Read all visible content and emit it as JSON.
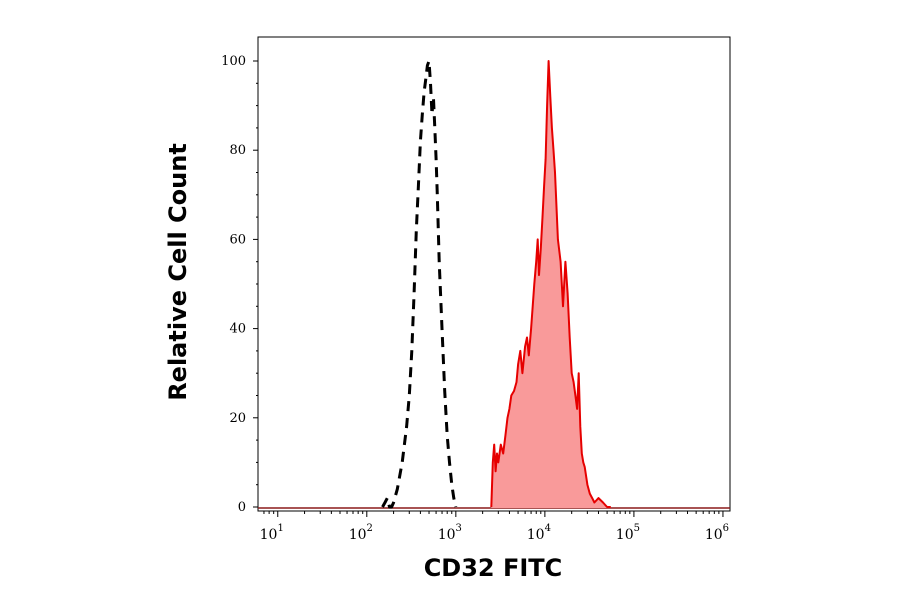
{
  "chart_data": {
    "type": "area",
    "xlabel": "CD32 FITC",
    "ylabel": "Relative Cell Count",
    "x_scale": "log",
    "xlim": [
      6,
      1200000
    ],
    "ylim": [
      0,
      100
    ],
    "x_ticks": [
      {
        "value": 10,
        "base": "10",
        "exp": "1"
      },
      {
        "value": 100,
        "base": "10",
        "exp": "2"
      },
      {
        "value": 1000,
        "base": "10",
        "exp": "3"
      },
      {
        "value": 10000,
        "base": "10",
        "exp": "4"
      },
      {
        "value": 100000,
        "base": "10",
        "exp": "5"
      },
      {
        "value": 1000000,
        "base": "10",
        "exp": "6"
      }
    ],
    "y_ticks": [
      "0",
      "20",
      "40",
      "60",
      "80",
      "100"
    ],
    "series": [
      {
        "style": "dashed-black-line",
        "color": "#000000",
        "x": [
          150,
          160,
          170,
          180,
          190,
          200,
          220,
          250,
          280,
          300,
          320,
          340,
          360,
          380,
          400,
          420,
          440,
          460,
          480,
          500,
          520,
          540,
          560,
          580,
          600,
          620,
          650,
          700,
          750,
          800,
          850,
          900,
          950,
          1000
        ],
        "y": [
          0,
          1,
          2,
          0,
          0,
          1,
          4,
          10,
          18,
          25,
          35,
          48,
          62,
          72,
          82,
          88,
          93,
          96,
          99,
          100,
          95,
          88,
          92,
          85,
          78,
          70,
          55,
          40,
          26,
          16,
          10,
          5,
          2,
          0
        ]
      },
      {
        "style": "red-filled",
        "color": "#e60000",
        "fill": "#f99a9a",
        "x": [
          2500,
          2600,
          2700,
          2800,
          2900,
          3000,
          3200,
          3400,
          3600,
          3800,
          4000,
          4200,
          4500,
          4800,
          5000,
          5300,
          5600,
          6000,
          6300,
          6600,
          7000,
          7300,
          7600,
          8000,
          8300,
          8600,
          9000,
          9400,
          9800,
          10200,
          10600,
          11000,
          11500,
          12000,
          12500,
          13000,
          14000,
          15000,
          16000,
          17000,
          18000,
          19000,
          20000,
          21000,
          22000,
          23000,
          24000,
          25000,
          26000,
          27000,
          28000,
          30000,
          32000,
          34000,
          36000,
          40000,
          45000,
          50000,
          55000
        ],
        "y": [
          0,
          10,
          14,
          8,
          12,
          10,
          14,
          12,
          16,
          20,
          22,
          25,
          26,
          28,
          32,
          35,
          30,
          36,
          38,
          34,
          40,
          45,
          50,
          55,
          60,
          52,
          58,
          65,
          72,
          78,
          90,
          100,
          92,
          85,
          80,
          75,
          60,
          55,
          45,
          55,
          48,
          38,
          30,
          28,
          25,
          22,
          30,
          18,
          12,
          10,
          9,
          5,
          3,
          2,
          1,
          2,
          1,
          0,
          0
        ]
      }
    ]
  }
}
